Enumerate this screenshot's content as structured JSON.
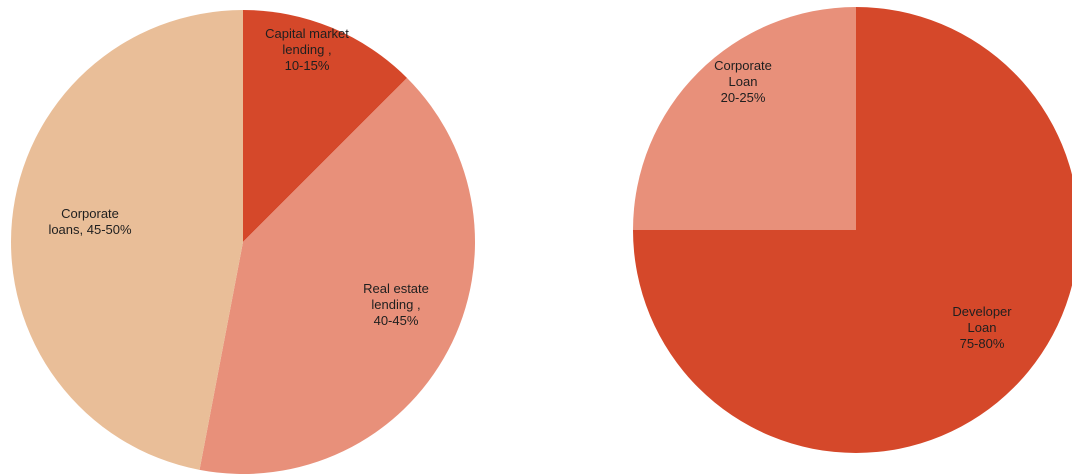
{
  "chart_data": [
    {
      "type": "pie",
      "slices": [
        {
          "label_lines": [
            "Capital market",
            "lending ,",
            "10-15%"
          ],
          "value": 12.5,
          "color": "#D5482A"
        },
        {
          "label_lines": [
            "Real estate",
            "lending ,",
            "40-45%"
          ],
          "value": 40.5,
          "color": "#E8907A"
        },
        {
          "label_lines": [
            "Corporate",
            "loans, 45-50%"
          ],
          "value": 47.0,
          "color": "#E9BE98"
        }
      ]
    },
    {
      "type": "pie",
      "slices": [
        {
          "label_lines": [
            "Developer",
            "Loan",
            "75-80%"
          ],
          "value": 75.0,
          "color": "#D5482A"
        },
        {
          "label_lines": [
            "Corporate",
            "Loan",
            "20-25%"
          ],
          "value": 25.0,
          "color": "#E8907A"
        }
      ]
    }
  ]
}
